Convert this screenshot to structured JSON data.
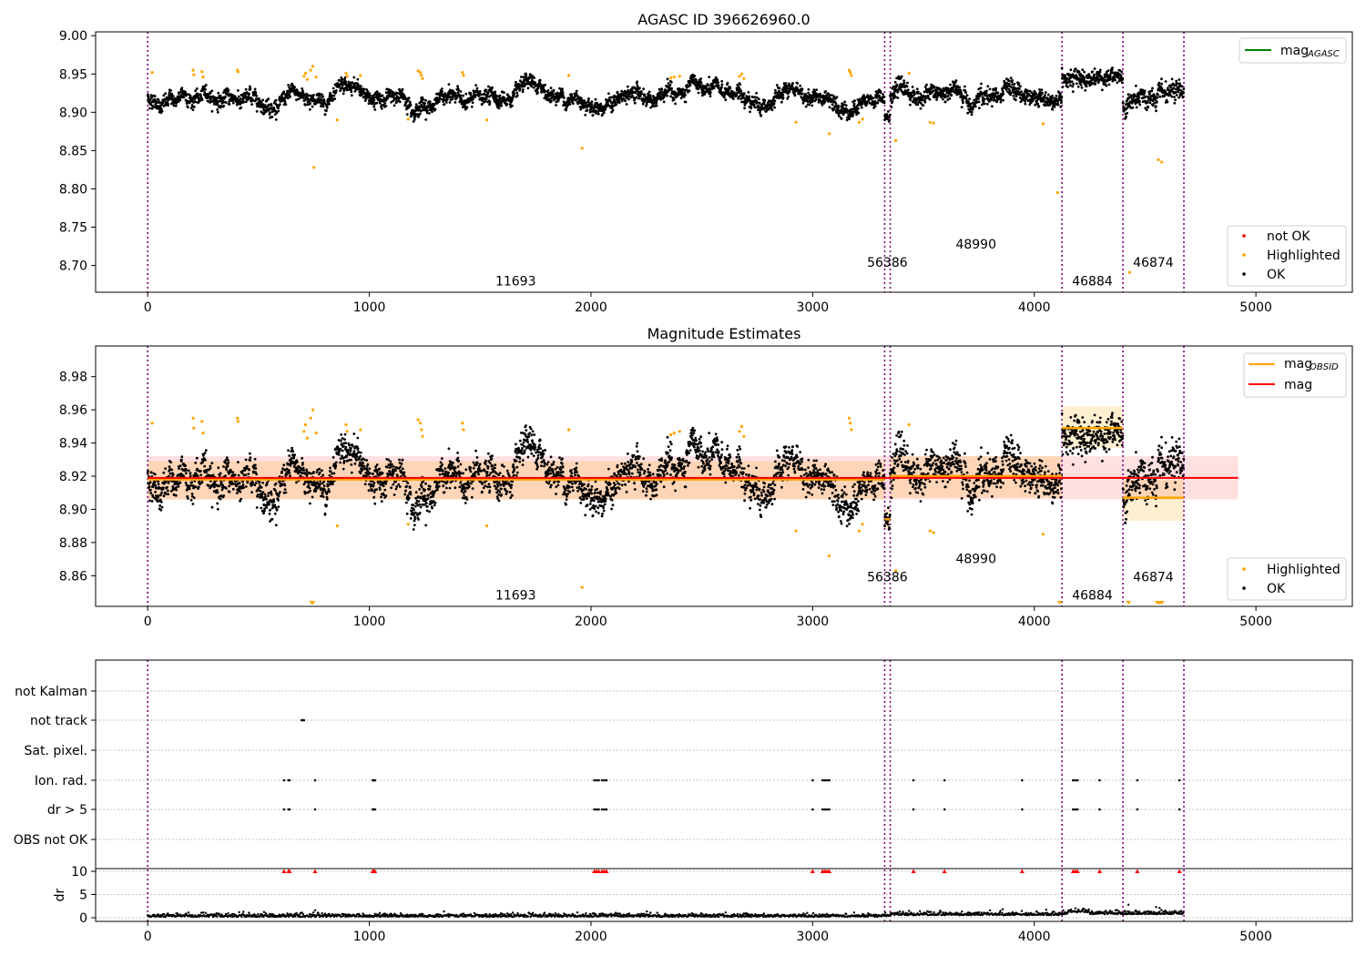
{
  "chart_data": [
    {
      "type": "scatter",
      "title": "AGASC ID 396626960.0",
      "xlim": [
        -235,
        5435
      ],
      "ylim": [
        8.665,
        9.005
      ],
      "xticks": [
        0,
        1000,
        2000,
        3000,
        4000,
        5000
      ],
      "yticks": [
        8.7,
        8.75,
        8.8,
        8.85,
        8.9,
        8.95,
        9.0
      ],
      "ytick_labels": [
        "8.70",
        "8.75",
        "8.80",
        "8.85",
        "8.90",
        "8.95",
        "9.00"
      ],
      "obs_boundaries": [
        0,
        3325,
        3350,
        4125,
        4400,
        4675
      ],
      "obs_labels": [
        {
          "text": "11693",
          "x": 1660,
          "y": 8.674
        },
        {
          "text": "56386",
          "x": 3337,
          "y": 8.698
        },
        {
          "text": "48990",
          "x": 3737,
          "y": 8.722
        },
        {
          "text": "46884",
          "x": 4262,
          "y": 8.674
        },
        {
          "text": "46874",
          "x": 4537,
          "y": 8.698
        }
      ],
      "legend_upper": [
        {
          "label": "mag",
          "sub": "AGASC",
          "color": "#008000",
          "kind": "line"
        }
      ],
      "legend_lower": [
        {
          "label": "not OK",
          "color": "#ff0000",
          "kind": "dot"
        },
        {
          "label": "Highlighted",
          "color": "#ffa500",
          "kind": "dot"
        },
        {
          "label": "OK",
          "color": "#000000",
          "kind": "dot"
        }
      ],
      "segments": [
        {
          "x0": 0,
          "x1": 3325,
          "level": 8.918,
          "noise": 0.008
        },
        {
          "x0": 3325,
          "x1": 3350,
          "level": 8.895,
          "noise": 0.007
        },
        {
          "x0": 3350,
          "x1": 4125,
          "level": 8.92,
          "noise": 0.009
        },
        {
          "x0": 4125,
          "x1": 4400,
          "level": 8.95,
          "noise": 0.009
        },
        {
          "x0": 4400,
          "x1": 4675,
          "level": 8.905,
          "noise": 0.01
        }
      ],
      "highlighted": [
        [
          20,
          8.952
        ],
        [
          205,
          8.955
        ],
        [
          208,
          8.949
        ],
        [
          245,
          8.953
        ],
        [
          250,
          8.946
        ],
        [
          405,
          8.955
        ],
        [
          408,
          8.953
        ],
        [
          705,
          8.947
        ],
        [
          712,
          8.951
        ],
        [
          720,
          8.943
        ],
        [
          735,
          8.955
        ],
        [
          745,
          8.96
        ],
        [
          750,
          8.828
        ],
        [
          760,
          8.946
        ],
        [
          855,
          8.89
        ],
        [
          895,
          8.951
        ],
        [
          900,
          8.947
        ],
        [
          960,
          8.948
        ],
        [
          1175,
          8.891
        ],
        [
          1220,
          8.954
        ],
        [
          1230,
          8.952
        ],
        [
          1235,
          8.948
        ],
        [
          1240,
          8.944
        ],
        [
          1420,
          8.952
        ],
        [
          1425,
          8.948
        ],
        [
          1530,
          8.89
        ],
        [
          1900,
          8.948
        ],
        [
          1960,
          8.853
        ],
        [
          2360,
          8.945
        ],
        [
          2375,
          8.946
        ],
        [
          2400,
          8.947
        ],
        [
          2670,
          8.947
        ],
        [
          2680,
          8.95
        ],
        [
          2690,
          8.944
        ],
        [
          2925,
          8.887
        ],
        [
          3075,
          8.872
        ],
        [
          3165,
          8.955
        ],
        [
          3170,
          8.952
        ],
        [
          3175,
          8.948
        ],
        [
          3210,
          8.887
        ],
        [
          3225,
          8.891
        ],
        [
          3375,
          8.863
        ],
        [
          3435,
          8.951
        ],
        [
          3530,
          8.887
        ],
        [
          3545,
          8.886
        ],
        [
          4040,
          8.885
        ],
        [
          4105,
          8.795
        ],
        [
          4430,
          8.691
        ],
        [
          4560,
          8.838
        ],
        [
          4575,
          8.835
        ]
      ]
    },
    {
      "type": "scatter",
      "title": "Magnitude Estimates",
      "xlim": [
        -235,
        5435
      ],
      "ylim": [
        8.8415,
        8.9985
      ],
      "xticks": [
        0,
        1000,
        2000,
        3000,
        4000,
        5000
      ],
      "yticks": [
        8.86,
        8.88,
        8.9,
        8.92,
        8.94,
        8.96,
        8.98
      ],
      "ytick_labels": [
        "8.86",
        "8.88",
        "8.90",
        "8.92",
        "8.94",
        "8.96",
        "8.98"
      ],
      "obs_boundaries": [
        0,
        3325,
        3350,
        4125,
        4400,
        4675
      ],
      "obs_labels": [
        {
          "text": "11693",
          "x": 1660,
          "y": 8.8455
        },
        {
          "text": "56386",
          "x": 3337,
          "y": 8.8565
        },
        {
          "text": "48990",
          "x": 3737,
          "y": 8.8675
        },
        {
          "text": "46884",
          "x": 4262,
          "y": 8.8455
        },
        {
          "text": "46874",
          "x": 4537,
          "y": 8.8565
        }
      ],
      "mag": 8.919,
      "mag_band": [
        8.906,
        8.932
      ],
      "mag_band_x": [
        0,
        4920
      ],
      "mag_obsid": [
        {
          "x0": 0,
          "x1": 3325,
          "mag": 8.918,
          "band": [
            8.906,
            8.929
          ]
        },
        {
          "x0": 3325,
          "x1": 3350,
          "mag": 8.894,
          "band": [
            8.888,
            8.901
          ]
        },
        {
          "x0": 3350,
          "x1": 4125,
          "mag": 8.92,
          "band": [
            8.907,
            8.932
          ]
        },
        {
          "x0": 4125,
          "x1": 4400,
          "mag": 8.949,
          "band": [
            8.937,
            8.962
          ]
        },
        {
          "x0": 4400,
          "x1": 4675,
          "mag": 8.907,
          "band": [
            8.893,
            8.918
          ]
        }
      ],
      "legend_upper": [
        {
          "label": "mag",
          "sub": "OBSID",
          "color": "#ffa500",
          "kind": "line"
        },
        {
          "label": "mag",
          "sub": "",
          "color": "#ff0000",
          "kind": "line"
        }
      ],
      "legend_lower": [
        {
          "label": "Highlighted",
          "color": "#ffa500",
          "kind": "dot"
        },
        {
          "label": "OK",
          "color": "#000000",
          "kind": "dot"
        }
      ],
      "clipped_low": [
        740,
        745,
        4115,
        4425,
        4555,
        4565,
        4575
      ]
    },
    {
      "type": "scatter",
      "title": "",
      "xlim": [
        -235,
        5435
      ],
      "xticks": [
        0,
        1000,
        2000,
        3000,
        4000,
        5000
      ],
      "flag_labels": [
        "not Kalman",
        "not track",
        "Sat. pixel.",
        "Ion. rad.",
        "dr > 5",
        "OBS not OK"
      ],
      "flags": {
        "not track": [
          695,
          700,
          705
        ],
        "Ion. rad.": [
          615,
          635,
          640,
          755,
          1015,
          1020,
          1025,
          2015,
          2025,
          2035,
          2050,
          2060,
          2070,
          3000,
          3045,
          3055,
          3065,
          3075,
          3455,
          3595,
          3945,
          4175,
          4185,
          4195,
          4295,
          4465,
          4655
        ],
        "dr > 5": [
          615,
          635,
          640,
          755,
          1015,
          1020,
          1025,
          2015,
          2025,
          2035,
          2050,
          2060,
          2070,
          3000,
          3045,
          3055,
          3065,
          3075,
          3455,
          3595,
          3945,
          4175,
          4185,
          4195,
          4295,
          4465,
          4655
        ]
      },
      "dr_ylabel": "dr",
      "dr_yticks": [
        0,
        5,
        10
      ],
      "dr_ylim": [
        -0.4,
        10.5
      ],
      "dr_clip": 10
    }
  ]
}
